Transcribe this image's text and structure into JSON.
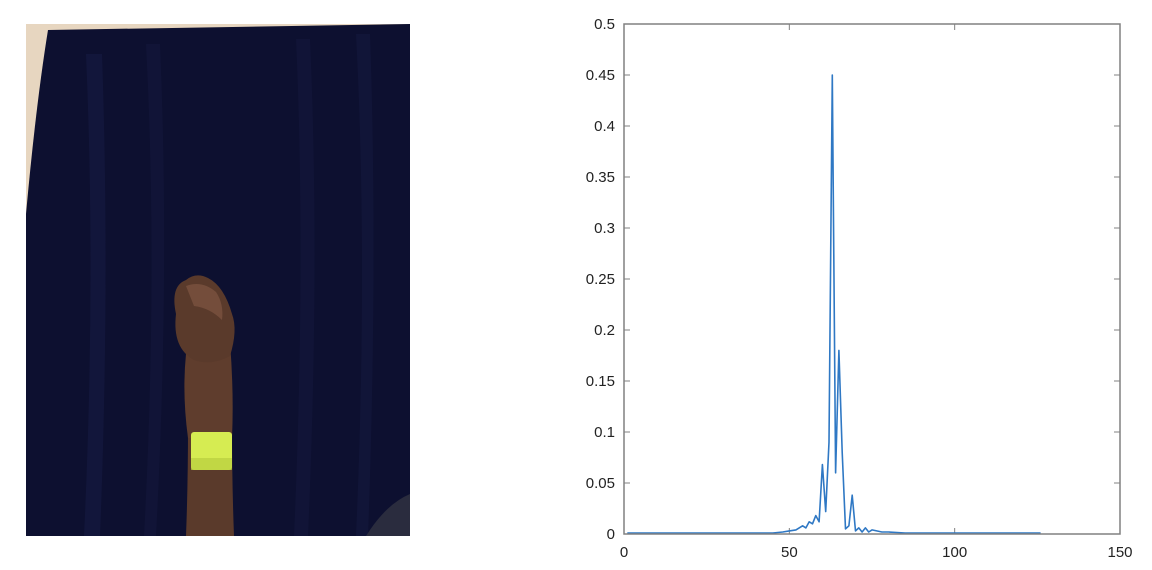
{
  "photo": {
    "subject": "hand-gesture-fist-with-wristband",
    "colors": {
      "backdrop": "#0d1030",
      "backdrop_fold": "#161a40",
      "wall": "#e7d6c0",
      "skin": "#5a3a2b",
      "skin_highlight": "#7a5340",
      "wristband": "#d6ec52"
    }
  },
  "chart_data": {
    "type": "line",
    "title": "",
    "xlabel": "",
    "ylabel": "",
    "xlim": [
      0,
      150
    ],
    "ylim": [
      0,
      0.5
    ],
    "xticks": [
      "0",
      "50",
      "100",
      "150"
    ],
    "yticks": [
      "0",
      "0.05",
      "0.1",
      "0.15",
      "0.2",
      "0.25",
      "0.3",
      "0.35",
      "0.4",
      "0.45",
      "0.5"
    ],
    "grid": false,
    "line_color": "#2f78c4",
    "series": [
      {
        "x": [
          1,
          5,
          10,
          15,
          20,
          25,
          30,
          35,
          40,
          45,
          48,
          50,
          52,
          54,
          55,
          56,
          57,
          58,
          59,
          60,
          61,
          62,
          63,
          64,
          65,
          66,
          67,
          68,
          69,
          70,
          71,
          72,
          73,
          74,
          75,
          78,
          80,
          85,
          90,
          95,
          100,
          105,
          110,
          115,
          120,
          126
        ],
        "y": [
          0.001,
          0.001,
          0.001,
          0.001,
          0.001,
          0.001,
          0.001,
          0.001,
          0.001,
          0.001,
          0.002,
          0.003,
          0.004,
          0.008,
          0.006,
          0.012,
          0.01,
          0.018,
          0.012,
          0.068,
          0.022,
          0.09,
          0.45,
          0.06,
          0.18,
          0.08,
          0.005,
          0.008,
          0.038,
          0.003,
          0.006,
          0.002,
          0.006,
          0.002,
          0.004,
          0.002,
          0.002,
          0.001,
          0.001,
          0.001,
          0.001,
          0.001,
          0.001,
          0.001,
          0.001,
          0.001
        ]
      }
    ]
  }
}
